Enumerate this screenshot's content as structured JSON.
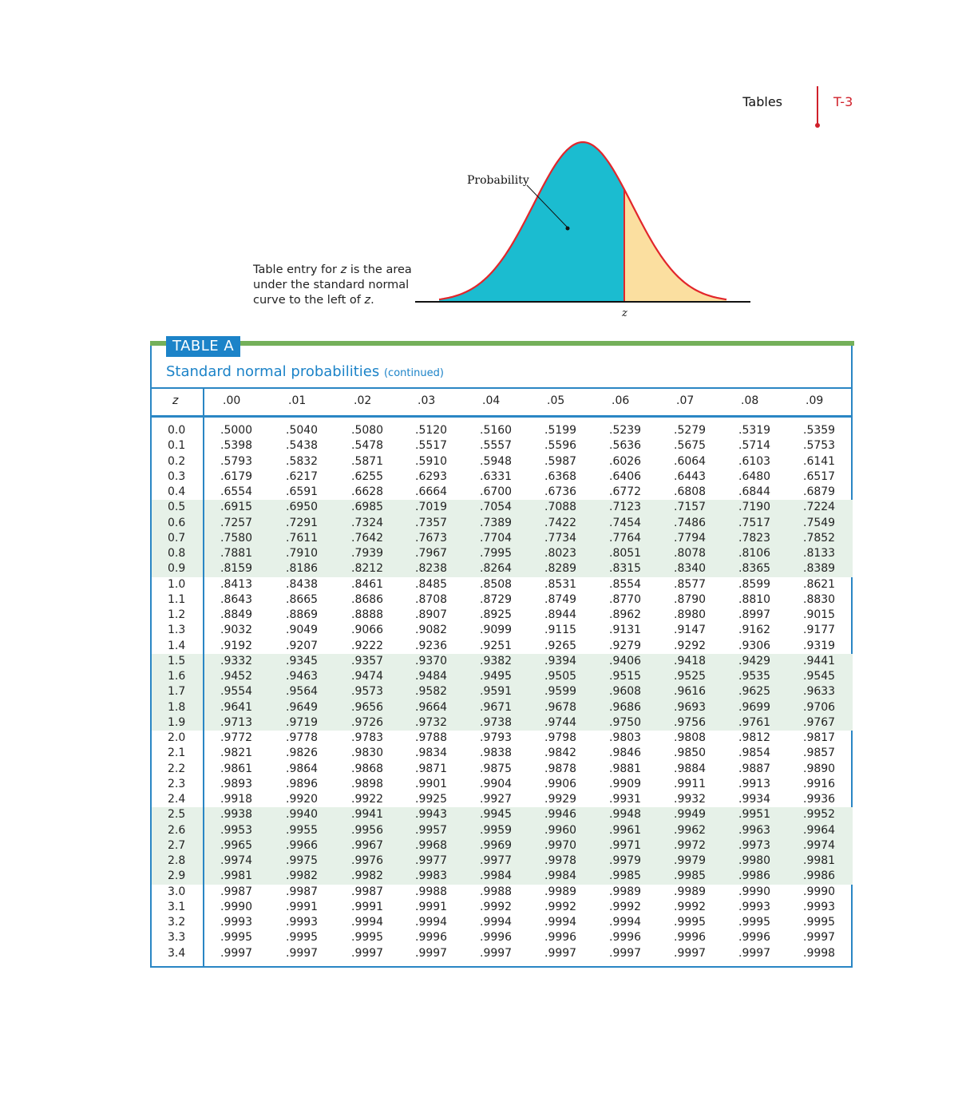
{
  "running_head": {
    "section": "Tables",
    "page": "T-3"
  },
  "figure": {
    "label": "Probability",
    "axis_mark": "z",
    "caption_parts": [
      "Table entry for ",
      "z",
      " is the area under the standard normal curve to the left of ",
      "z",
      "."
    ],
    "colors": {
      "shaded": "#1bbcd0",
      "unshaded": "#fbdfa0",
      "curve": "#e2262b"
    }
  },
  "table": {
    "label": "TABLE A",
    "title": "Standard normal probabilities",
    "title_note": "(continued)",
    "z_header": "z",
    "columns": [
      ".00",
      ".01",
      ".02",
      ".03",
      ".04",
      ".05",
      ".06",
      ".07",
      ".08",
      ".09"
    ],
    "rows": [
      {
        "z": "0.0",
        "v": [
          ".5000",
          ".5040",
          ".5080",
          ".5120",
          ".5160",
          ".5199",
          ".5239",
          ".5279",
          ".5319",
          ".5359"
        ]
      },
      {
        "z": "0.1",
        "v": [
          ".5398",
          ".5438",
          ".5478",
          ".5517",
          ".5557",
          ".5596",
          ".5636",
          ".5675",
          ".5714",
          ".5753"
        ]
      },
      {
        "z": "0.2",
        "v": [
          ".5793",
          ".5832",
          ".5871",
          ".5910",
          ".5948",
          ".5987",
          ".6026",
          ".6064",
          ".6103",
          ".6141"
        ]
      },
      {
        "z": "0.3",
        "v": [
          ".6179",
          ".6217",
          ".6255",
          ".6293",
          ".6331",
          ".6368",
          ".6406",
          ".6443",
          ".6480",
          ".6517"
        ]
      },
      {
        "z": "0.4",
        "v": [
          ".6554",
          ".6591",
          ".6628",
          ".6664",
          ".6700",
          ".6736",
          ".6772",
          ".6808",
          ".6844",
          ".6879"
        ]
      },
      {
        "z": "0.5",
        "v": [
          ".6915",
          ".6950",
          ".6985",
          ".7019",
          ".7054",
          ".7088",
          ".7123",
          ".7157",
          ".7190",
          ".7224"
        ]
      },
      {
        "z": "0.6",
        "v": [
          ".7257",
          ".7291",
          ".7324",
          ".7357",
          ".7389",
          ".7422",
          ".7454",
          ".7486",
          ".7517",
          ".7549"
        ]
      },
      {
        "z": "0.7",
        "v": [
          ".7580",
          ".7611",
          ".7642",
          ".7673",
          ".7704",
          ".7734",
          ".7764",
          ".7794",
          ".7823",
          ".7852"
        ]
      },
      {
        "z": "0.8",
        "v": [
          ".7881",
          ".7910",
          ".7939",
          ".7967",
          ".7995",
          ".8023",
          ".8051",
          ".8078",
          ".8106",
          ".8133"
        ]
      },
      {
        "z": "0.9",
        "v": [
          ".8159",
          ".8186",
          ".8212",
          ".8238",
          ".8264",
          ".8289",
          ".8315",
          ".8340",
          ".8365",
          ".8389"
        ]
      },
      {
        "z": "1.0",
        "v": [
          ".8413",
          ".8438",
          ".8461",
          ".8485",
          ".8508",
          ".8531",
          ".8554",
          ".8577",
          ".8599",
          ".8621"
        ]
      },
      {
        "z": "1.1",
        "v": [
          ".8643",
          ".8665",
          ".8686",
          ".8708",
          ".8729",
          ".8749",
          ".8770",
          ".8790",
          ".8810",
          ".8830"
        ]
      },
      {
        "z": "1.2",
        "v": [
          ".8849",
          ".8869",
          ".8888",
          ".8907",
          ".8925",
          ".8944",
          ".8962",
          ".8980",
          ".8997",
          ".9015"
        ]
      },
      {
        "z": "1.3",
        "v": [
          ".9032",
          ".9049",
          ".9066",
          ".9082",
          ".9099",
          ".9115",
          ".9131",
          ".9147",
          ".9162",
          ".9177"
        ]
      },
      {
        "z": "1.4",
        "v": [
          ".9192",
          ".9207",
          ".9222",
          ".9236",
          ".9251",
          ".9265",
          ".9279",
          ".9292",
          ".9306",
          ".9319"
        ]
      },
      {
        "z": "1.5",
        "v": [
          ".9332",
          ".9345",
          ".9357",
          ".9370",
          ".9382",
          ".9394",
          ".9406",
          ".9418",
          ".9429",
          ".9441"
        ]
      },
      {
        "z": "1.6",
        "v": [
          ".9452",
          ".9463",
          ".9474",
          ".9484",
          ".9495",
          ".9505",
          ".9515",
          ".9525",
          ".9535",
          ".9545"
        ]
      },
      {
        "z": "1.7",
        "v": [
          ".9554",
          ".9564",
          ".9573",
          ".9582",
          ".9591",
          ".9599",
          ".9608",
          ".9616",
          ".9625",
          ".9633"
        ]
      },
      {
        "z": "1.8",
        "v": [
          ".9641",
          ".9649",
          ".9656",
          ".9664",
          ".9671",
          ".9678",
          ".9686",
          ".9693",
          ".9699",
          ".9706"
        ]
      },
      {
        "z": "1.9",
        "v": [
          ".9713",
          ".9719",
          ".9726",
          ".9732",
          ".9738",
          ".9744",
          ".9750",
          ".9756",
          ".9761",
          ".9767"
        ]
      },
      {
        "z": "2.0",
        "v": [
          ".9772",
          ".9778",
          ".9783",
          ".9788",
          ".9793",
          ".9798",
          ".9803",
          ".9808",
          ".9812",
          ".9817"
        ]
      },
      {
        "z": "2.1",
        "v": [
          ".9821",
          ".9826",
          ".9830",
          ".9834",
          ".9838",
          ".9842",
          ".9846",
          ".9850",
          ".9854",
          ".9857"
        ]
      },
      {
        "z": "2.2",
        "v": [
          ".9861",
          ".9864",
          ".9868",
          ".9871",
          ".9875",
          ".9878",
          ".9881",
          ".9884",
          ".9887",
          ".9890"
        ]
      },
      {
        "z": "2.3",
        "v": [
          ".9893",
          ".9896",
          ".9898",
          ".9901",
          ".9904",
          ".9906",
          ".9909",
          ".9911",
          ".9913",
          ".9916"
        ]
      },
      {
        "z": "2.4",
        "v": [
          ".9918",
          ".9920",
          ".9922",
          ".9925",
          ".9927",
          ".9929",
          ".9931",
          ".9932",
          ".9934",
          ".9936"
        ]
      },
      {
        "z": "2.5",
        "v": [
          ".9938",
          ".9940",
          ".9941",
          ".9943",
          ".9945",
          ".9946",
          ".9948",
          ".9949",
          ".9951",
          ".9952"
        ]
      },
      {
        "z": "2.6",
        "v": [
          ".9953",
          ".9955",
          ".9956",
          ".9957",
          ".9959",
          ".9960",
          ".9961",
          ".9962",
          ".9963",
          ".9964"
        ]
      },
      {
        "z": "2.7",
        "v": [
          ".9965",
          ".9966",
          ".9967",
          ".9968",
          ".9969",
          ".9970",
          ".9971",
          ".9972",
          ".9973",
          ".9974"
        ]
      },
      {
        "z": "2.8",
        "v": [
          ".9974",
          ".9975",
          ".9976",
          ".9977",
          ".9977",
          ".9978",
          ".9979",
          ".9979",
          ".9980",
          ".9981"
        ]
      },
      {
        "z": "2.9",
        "v": [
          ".9981",
          ".9982",
          ".9982",
          ".9983",
          ".9984",
          ".9984",
          ".9985",
          ".9985",
          ".9986",
          ".9986"
        ]
      },
      {
        "z": "3.0",
        "v": [
          ".9987",
          ".9987",
          ".9987",
          ".9988",
          ".9988",
          ".9989",
          ".9989",
          ".9989",
          ".9990",
          ".9990"
        ]
      },
      {
        "z": "3.1",
        "v": [
          ".9990",
          ".9991",
          ".9991",
          ".9991",
          ".9992",
          ".9992",
          ".9992",
          ".9992",
          ".9993",
          ".9993"
        ]
      },
      {
        "z": "3.2",
        "v": [
          ".9993",
          ".9993",
          ".9994",
          ".9994",
          ".9994",
          ".9994",
          ".9994",
          ".9995",
          ".9995",
          ".9995"
        ]
      },
      {
        "z": "3.3",
        "v": [
          ".9995",
          ".9995",
          ".9995",
          ".9996",
          ".9996",
          ".9996",
          ".9996",
          ".9996",
          ".9996",
          ".9997"
        ]
      },
      {
        "z": "3.4",
        "v": [
          ".9997",
          ".9997",
          ".9997",
          ".9997",
          ".9997",
          ".9997",
          ".9997",
          ".9997",
          ".9997",
          ".9998"
        ]
      }
    ]
  }
}
